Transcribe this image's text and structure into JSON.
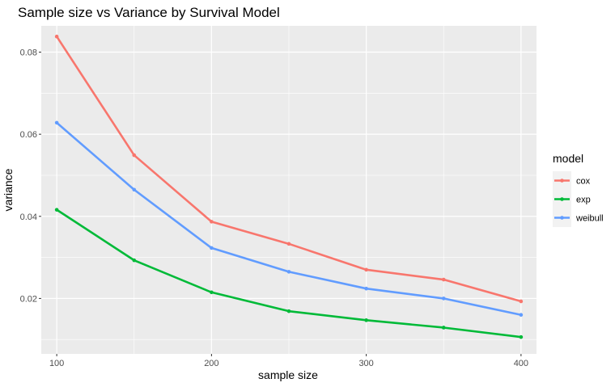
{
  "chart_data": {
    "type": "line",
    "title": "Sample size vs Variance by Survival Model",
    "xlabel": "sample size",
    "ylabel": "variance",
    "x": [
      100,
      150,
      200,
      250,
      300,
      350,
      400
    ],
    "xlim": [
      90,
      410
    ],
    "ylim": [
      0.0065,
      0.0864
    ],
    "xticks": [
      100,
      200,
      300,
      400
    ],
    "yticks": [
      0.02,
      0.04,
      0.06,
      0.08
    ],
    "ytick_labels": [
      "0.02",
      "0.04",
      "0.06",
      "0.08"
    ],
    "xtick_labels": [
      "100",
      "200",
      "300",
      "400"
    ],
    "grid": true,
    "legend": {
      "title": "model",
      "placement": "right"
    },
    "series": [
      {
        "name": "cox",
        "color": "#F8766D",
        "values": [
          0.0838,
          0.0549,
          0.0387,
          0.0333,
          0.027,
          0.0246,
          0.0193
        ]
      },
      {
        "name": "exp",
        "color": "#00BA38",
        "values": [
          0.0416,
          0.0293,
          0.0215,
          0.0169,
          0.0147,
          0.0129,
          0.0106
        ]
      },
      {
        "name": "weibull",
        "color": "#619CFF",
        "values": [
          0.0628,
          0.0465,
          0.0323,
          0.0265,
          0.0224,
          0.02,
          0.016
        ]
      }
    ]
  }
}
